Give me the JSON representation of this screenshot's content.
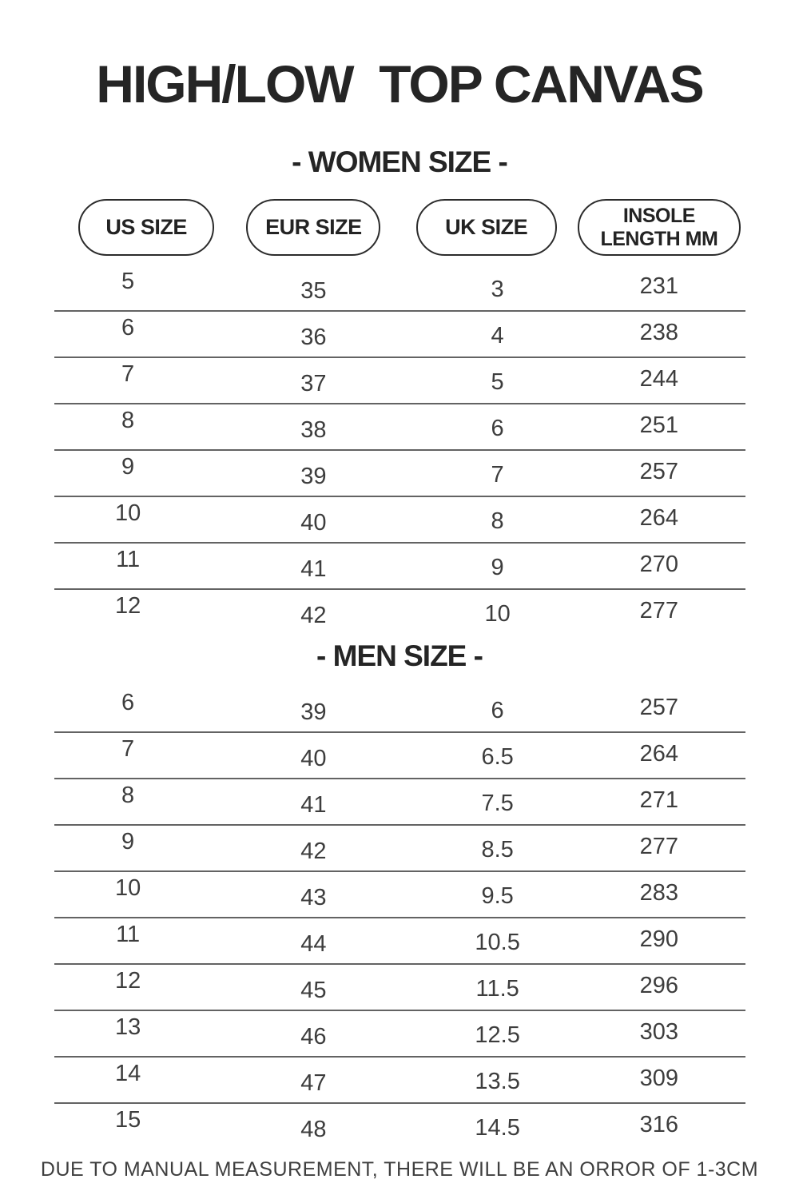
{
  "page": {
    "title": "HIGH/LOW  TOP CANVAS",
    "footer": "DUE TO MANUAL MEASUREMENT, THERE WILL BE AN ORROR OF 1-3CM"
  },
  "columns": [
    {
      "label": "US SIZE"
    },
    {
      "label": "EUR SIZE"
    },
    {
      "label": "UK SIZE"
    },
    {
      "label": "INSOLE LENGTH MM"
    }
  ],
  "women": {
    "heading": "- WOMEN SIZE -",
    "rows": [
      [
        "5",
        "35",
        "3",
        "231"
      ],
      [
        "6",
        "36",
        "4",
        "238"
      ],
      [
        "7",
        "37",
        "5",
        "244"
      ],
      [
        "8",
        "38",
        "6",
        "251"
      ],
      [
        "9",
        "39",
        "7",
        "257"
      ],
      [
        "10",
        "40",
        "8",
        "264"
      ],
      [
        "11",
        "41",
        "9",
        "270"
      ],
      [
        "12",
        "42",
        "10",
        "277"
      ]
    ]
  },
  "men": {
    "heading": "- MEN SIZE -",
    "rows": [
      [
        "6",
        "39",
        "6",
        "257"
      ],
      [
        "7",
        "40",
        "6.5",
        "264"
      ],
      [
        "8",
        "41",
        "7.5",
        "271"
      ],
      [
        "9",
        "42",
        "8.5",
        "277"
      ],
      [
        "10",
        "43",
        "9.5",
        "283"
      ],
      [
        "11",
        "44",
        "10.5",
        "290"
      ],
      [
        "12",
        "45",
        "11.5",
        "296"
      ],
      [
        "13",
        "46",
        "12.5",
        "303"
      ],
      [
        "14",
        "47",
        "13.5",
        "309"
      ],
      [
        "15",
        "48",
        "14.5",
        "316"
      ]
    ]
  },
  "colors": {
    "text": "#252525",
    "numbers": "#3d3d3d",
    "divider": "#636363",
    "pill_border": "#2b2b2b",
    "background": "#ffffff"
  }
}
